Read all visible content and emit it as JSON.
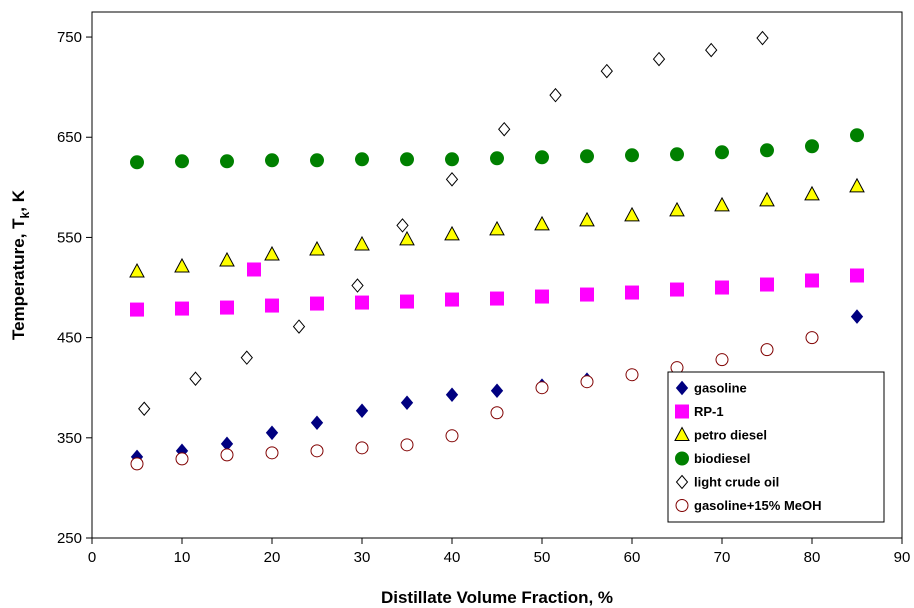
{
  "chart_data": {
    "type": "scatter",
    "title": "",
    "xlabel": "Distillate Volume Fraction, %",
    "ylabel_parts": [
      "Temperature, T",
      "k",
      ", K"
    ],
    "xlim": [
      0,
      90
    ],
    "ylim": [
      250,
      775
    ],
    "x_ticks": [
      0,
      10,
      20,
      30,
      40,
      50,
      60,
      70,
      80,
      90
    ],
    "y_ticks": [
      250,
      350,
      450,
      550,
      650,
      750
    ],
    "grid": false,
    "legend_position": "bottom-right",
    "series": [
      {
        "name": "gasoline",
        "marker": "diamond-filled",
        "color": "#000080",
        "x": [
          5,
          10,
          15,
          20,
          25,
          30,
          35,
          40,
          45,
          50,
          55,
          85
        ],
        "y": [
          331,
          337,
          344,
          355,
          365,
          377,
          385,
          393,
          397,
          402,
          408,
          471
        ]
      },
      {
        "name": "RP-1",
        "marker": "square-filled",
        "color": "#ff00ff",
        "x": [
          5,
          10,
          15,
          18,
          20,
          25,
          30,
          35,
          40,
          45,
          50,
          55,
          60,
          65,
          70,
          75,
          80,
          85
        ],
        "y": [
          478,
          479,
          480,
          518,
          482,
          484,
          485,
          486,
          488,
          489,
          491,
          493,
          495,
          498,
          500,
          503,
          507,
          512
        ]
      },
      {
        "name": "petro diesel",
        "marker": "triangle-filled",
        "color": "#ffff00",
        "x": [
          5,
          10,
          15,
          20,
          25,
          30,
          35,
          40,
          45,
          50,
          55,
          60,
          65,
          70,
          75,
          80,
          85
        ],
        "y": [
          516,
          521,
          527,
          533,
          538,
          543,
          548,
          553,
          558,
          563,
          567,
          572,
          577,
          582,
          587,
          593,
          601
        ]
      },
      {
        "name": "biodiesel",
        "marker": "circle-filled",
        "color": "#008000",
        "x": [
          5,
          10,
          15,
          20,
          25,
          30,
          35,
          40,
          45,
          50,
          55,
          60,
          65,
          70,
          75,
          80,
          85
        ],
        "y": [
          625,
          626,
          626,
          627,
          627,
          628,
          628,
          628,
          629,
          630,
          631,
          632,
          633,
          635,
          637,
          641,
          652
        ]
      },
      {
        "name": "light crude oil",
        "marker": "diamond-open",
        "color": "#000000",
        "x": [
          5.8,
          11.5,
          17.2,
          23,
          29.5,
          34.5,
          40,
          45.8,
          51.5,
          57.2,
          63,
          68.8,
          74.5
        ],
        "y": [
          379,
          409,
          430,
          461,
          502,
          562,
          608,
          658,
          692,
          716,
          728,
          737,
          749
        ]
      },
      {
        "name": "gasoline+15% MeOH",
        "marker": "circle-open",
        "color": "#800000",
        "x": [
          5,
          10,
          15,
          20,
          25,
          30,
          35,
          40,
          45,
          50,
          55,
          60,
          65,
          70,
          75,
          80
        ],
        "y": [
          324,
          329,
          333,
          335,
          337,
          340,
          343,
          352,
          375,
          400,
          406,
          413,
          420,
          428,
          438,
          450
        ]
      }
    ]
  }
}
